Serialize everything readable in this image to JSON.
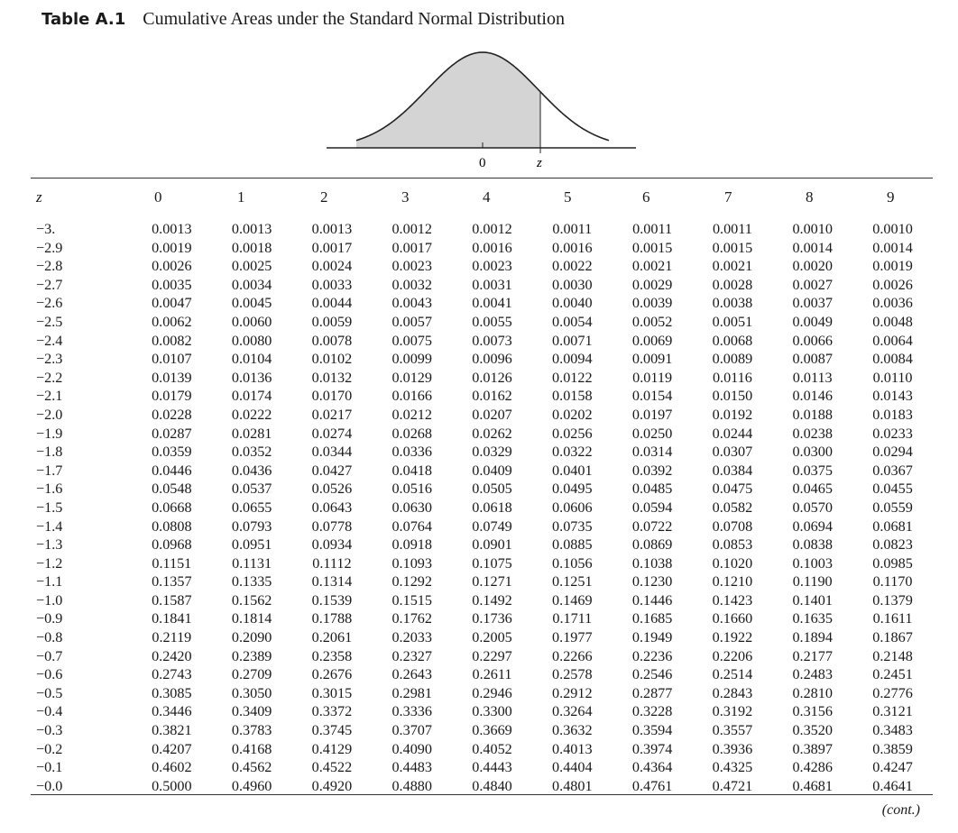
{
  "title": {
    "label": "Table A.1",
    "text": "Cumulative Areas under the Standard Normal Distribution"
  },
  "figure": {
    "origin_label": "0",
    "z_label": "z"
  },
  "header": {
    "z_label": "z",
    "columns": [
      "0",
      "1",
      "2",
      "3",
      "4",
      "5",
      "6",
      "7",
      "8",
      "9"
    ]
  },
  "rows": [
    {
      "z": "−3.",
      "values": [
        "0.0013",
        "0.0013",
        "0.0013",
        "0.0012",
        "0.0012",
        "0.0011",
        "0.0011",
        "0.0011",
        "0.0010",
        "0.0010"
      ]
    },
    {
      "z": "−2.9",
      "values": [
        "0.0019",
        "0.0018",
        "0.0017",
        "0.0017",
        "0.0016",
        "0.0016",
        "0.0015",
        "0.0015",
        "0.0014",
        "0.0014"
      ]
    },
    {
      "z": "−2.8",
      "values": [
        "0.0026",
        "0.0025",
        "0.0024",
        "0.0023",
        "0.0023",
        "0.0022",
        "0.0021",
        "0.0021",
        "0.0020",
        "0.0019"
      ]
    },
    {
      "z": "−2.7",
      "values": [
        "0.0035",
        "0.0034",
        "0.0033",
        "0.0032",
        "0.0031",
        "0.0030",
        "0.0029",
        "0.0028",
        "0.0027",
        "0.0026"
      ]
    },
    {
      "z": "−2.6",
      "values": [
        "0.0047",
        "0.0045",
        "0.0044",
        "0.0043",
        "0.0041",
        "0.0040",
        "0.0039",
        "0.0038",
        "0.0037",
        "0.0036"
      ]
    },
    {
      "z": "−2.5",
      "values": [
        "0.0062",
        "0.0060",
        "0.0059",
        "0.0057",
        "0.0055",
        "0.0054",
        "0.0052",
        "0.0051",
        "0.0049",
        "0.0048"
      ]
    },
    {
      "z": "−2.4",
      "values": [
        "0.0082",
        "0.0080",
        "0.0078",
        "0.0075",
        "0.0073",
        "0.0071",
        "0.0069",
        "0.0068",
        "0.0066",
        "0.0064"
      ]
    },
    {
      "z": "−2.3",
      "values": [
        "0.0107",
        "0.0104",
        "0.0102",
        "0.0099",
        "0.0096",
        "0.0094",
        "0.0091",
        "0.0089",
        "0.0087",
        "0.0084"
      ]
    },
    {
      "z": "−2.2",
      "values": [
        "0.0139",
        "0.0136",
        "0.0132",
        "0.0129",
        "0.0126",
        "0.0122",
        "0.0119",
        "0.0116",
        "0.0113",
        "0.0110"
      ]
    },
    {
      "z": "−2.1",
      "values": [
        "0.0179",
        "0.0174",
        "0.0170",
        "0.0166",
        "0.0162",
        "0.0158",
        "0.0154",
        "0.0150",
        "0.0146",
        "0.0143"
      ]
    },
    {
      "z": "−2.0",
      "values": [
        "0.0228",
        "0.0222",
        "0.0217",
        "0.0212",
        "0.0207",
        "0.0202",
        "0.0197",
        "0.0192",
        "0.0188",
        "0.0183"
      ]
    },
    {
      "z": "−1.9",
      "values": [
        "0.0287",
        "0.0281",
        "0.0274",
        "0.0268",
        "0.0262",
        "0.0256",
        "0.0250",
        "0.0244",
        "0.0238",
        "0.0233"
      ]
    },
    {
      "z": "−1.8",
      "values": [
        "0.0359",
        "0.0352",
        "0.0344",
        "0.0336",
        "0.0329",
        "0.0322",
        "0.0314",
        "0.0307",
        "0.0300",
        "0.0294"
      ]
    },
    {
      "z": "−1.7",
      "values": [
        "0.0446",
        "0.0436",
        "0.0427",
        "0.0418",
        "0.0409",
        "0.0401",
        "0.0392",
        "0.0384",
        "0.0375",
        "0.0367"
      ]
    },
    {
      "z": "−1.6",
      "values": [
        "0.0548",
        "0.0537",
        "0.0526",
        "0.0516",
        "0.0505",
        "0.0495",
        "0.0485",
        "0.0475",
        "0.0465",
        "0.0455"
      ]
    },
    {
      "z": "−1.5",
      "values": [
        "0.0668",
        "0.0655",
        "0.0643",
        "0.0630",
        "0.0618",
        "0.0606",
        "0.0594",
        "0.0582",
        "0.0570",
        "0.0559"
      ]
    },
    {
      "z": "−1.4",
      "values": [
        "0.0808",
        "0.0793",
        "0.0778",
        "0.0764",
        "0.0749",
        "0.0735",
        "0.0722",
        "0.0708",
        "0.0694",
        "0.0681"
      ]
    },
    {
      "z": "−1.3",
      "values": [
        "0.0968",
        "0.0951",
        "0.0934",
        "0.0918",
        "0.0901",
        "0.0885",
        "0.0869",
        "0.0853",
        "0.0838",
        "0.0823"
      ]
    },
    {
      "z": "−1.2",
      "values": [
        "0.1151",
        "0.1131",
        "0.1112",
        "0.1093",
        "0.1075",
        "0.1056",
        "0.1038",
        "0.1020",
        "0.1003",
        "0.0985"
      ]
    },
    {
      "z": "−1.1",
      "values": [
        "0.1357",
        "0.1335",
        "0.1314",
        "0.1292",
        "0.1271",
        "0.1251",
        "0.1230",
        "0.1210",
        "0.1190",
        "0.1170"
      ]
    },
    {
      "z": "−1.0",
      "values": [
        "0.1587",
        "0.1562",
        "0.1539",
        "0.1515",
        "0.1492",
        "0.1469",
        "0.1446",
        "0.1423",
        "0.1401",
        "0.1379"
      ]
    },
    {
      "z": "−0.9",
      "values": [
        "0.1841",
        "0.1814",
        "0.1788",
        "0.1762",
        "0.1736",
        "0.1711",
        "0.1685",
        "0.1660",
        "0.1635",
        "0.1611"
      ]
    },
    {
      "z": "−0.8",
      "values": [
        "0.2119",
        "0.2090",
        "0.2061",
        "0.2033",
        "0.2005",
        "0.1977",
        "0.1949",
        "0.1922",
        "0.1894",
        "0.1867"
      ]
    },
    {
      "z": "−0.7",
      "values": [
        "0.2420",
        "0.2389",
        "0.2358",
        "0.2327",
        "0.2297",
        "0.2266",
        "0.2236",
        "0.2206",
        "0.2177",
        "0.2148"
      ]
    },
    {
      "z": "−0.6",
      "values": [
        "0.2743",
        "0.2709",
        "0.2676",
        "0.2643",
        "0.2611",
        "0.2578",
        "0.2546",
        "0.2514",
        "0.2483",
        "0.2451"
      ]
    },
    {
      "z": "−0.5",
      "values": [
        "0.3085",
        "0.3050",
        "0.3015",
        "0.2981",
        "0.2946",
        "0.2912",
        "0.2877",
        "0.2843",
        "0.2810",
        "0.2776"
      ]
    },
    {
      "z": "−0.4",
      "values": [
        "0.3446",
        "0.3409",
        "0.3372",
        "0.3336",
        "0.3300",
        "0.3264",
        "0.3228",
        "0.3192",
        "0.3156",
        "0.3121"
      ]
    },
    {
      "z": "−0.3",
      "values": [
        "0.3821",
        "0.3783",
        "0.3745",
        "0.3707",
        "0.3669",
        "0.3632",
        "0.3594",
        "0.3557",
        "0.3520",
        "0.3483"
      ]
    },
    {
      "z": "−0.2",
      "values": [
        "0.4207",
        "0.4168",
        "0.4129",
        "0.4090",
        "0.4052",
        "0.4013",
        "0.3974",
        "0.3936",
        "0.3897",
        "0.3859"
      ]
    },
    {
      "z": "−0.1",
      "values": [
        "0.4602",
        "0.4562",
        "0.4522",
        "0.4483",
        "0.4443",
        "0.4404",
        "0.4364",
        "0.4325",
        "0.4286",
        "0.4247"
      ]
    },
    {
      "z": "−0.0",
      "values": [
        "0.5000",
        "0.4960",
        "0.4920",
        "0.4880",
        "0.4840",
        "0.4801",
        "0.4761",
        "0.4721",
        "0.4681",
        "0.4641"
      ]
    }
  ],
  "footer": {
    "cont": "(cont.)"
  }
}
